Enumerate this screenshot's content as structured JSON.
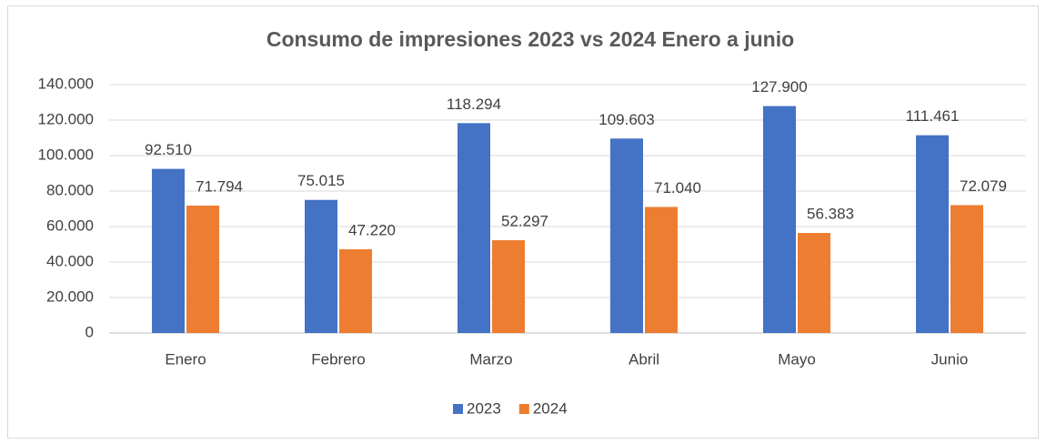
{
  "chart_data": {
    "type": "bar",
    "title": "Consumo de impresiones 2023 vs 2024   Enero a junio",
    "categories": [
      "Enero",
      "Febrero",
      "Marzo",
      "Abril",
      "Mayo",
      "Junio"
    ],
    "series": [
      {
        "name": "2023",
        "color": "#4472c4",
        "values": [
          92510,
          75015,
          118294,
          109603,
          127900,
          111461
        ],
        "value_labels": [
          "92.510",
          "75.015",
          "118.294",
          "109.603",
          "127.900",
          "111.461"
        ]
      },
      {
        "name": "2024",
        "color": "#ed7d31",
        "values": [
          71794,
          47220,
          52297,
          71040,
          56383,
          72079
        ],
        "value_labels": [
          "71.794",
          "47.220",
          "52.297",
          "71.040",
          "56.383",
          "72.079"
        ]
      }
    ],
    "ylim": [
      0,
      140000
    ],
    "yticks": [
      0,
      {
        "value": 20000,
        "label": "20.000"
      },
      {
        "value": 40000,
        "label": "40.000"
      },
      {
        "value": 60000,
        "label": "60.000"
      },
      {
        "value": 80000,
        "label": "80.000"
      },
      {
        "value": 100000,
        "label": "100.000"
      },
      {
        "value": 120000,
        "label": "120.000"
      },
      {
        "value": 140000,
        "label": "140.000"
      }
    ],
    "grid": true,
    "legend": "bottom"
  }
}
